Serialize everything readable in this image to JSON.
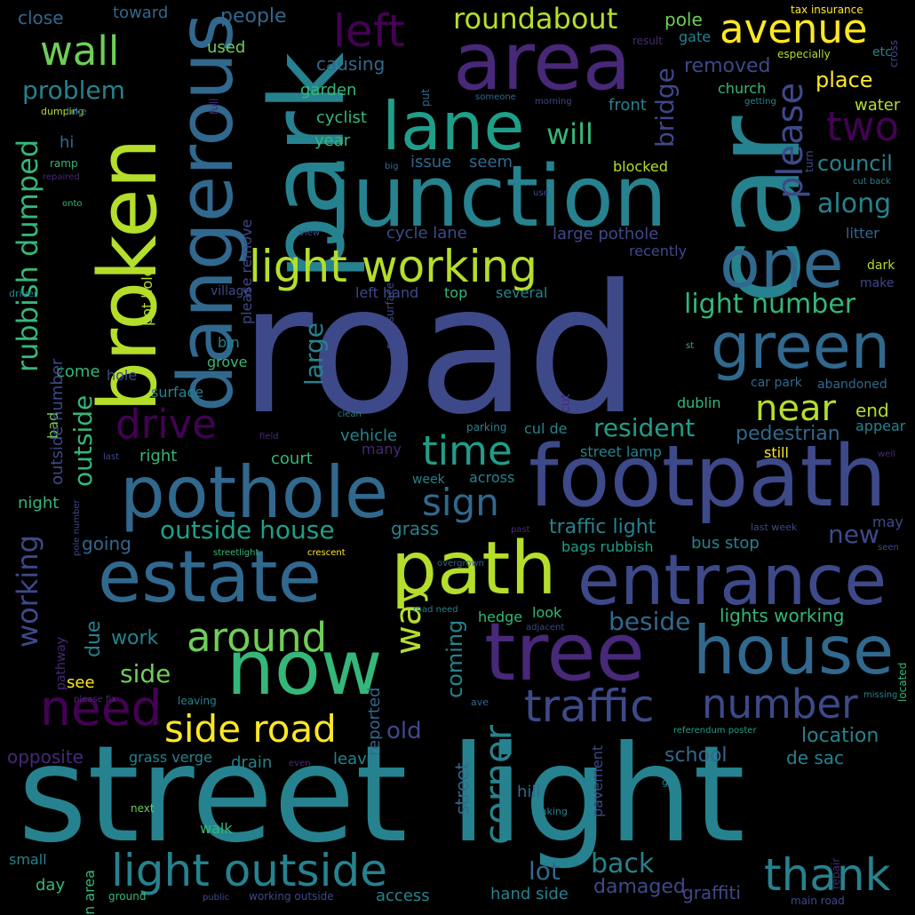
{
  "palette": [
    "#440154",
    "#482878",
    "#3e4989",
    "#31688e",
    "#26828e",
    "#1f9e89",
    "#35b779",
    "#6ece58",
    "#b5de2b",
    "#fde725"
  ],
  "words": [
    {
      "text": "road",
      "color": "#3e4989"
    },
    {
      "text": "street light",
      "color": "#26828e"
    },
    {
      "text": "junction",
      "color": "#26828e"
    },
    {
      "text": "footpath",
      "color": "#3e4989"
    },
    {
      "text": "car",
      "color": "#26828e"
    },
    {
      "text": "area",
      "color": "#482878"
    },
    {
      "text": "park",
      "color": "#26828e"
    },
    {
      "text": "broken",
      "color": "#b5de2b"
    },
    {
      "text": "dangerous",
      "color": "#31688e"
    },
    {
      "text": "pothole",
      "color": "#31688e"
    },
    {
      "text": "estate",
      "color": "#31688e"
    },
    {
      "text": "path",
      "color": "#b5de2b"
    },
    {
      "text": "entrance",
      "color": "#3e4989"
    },
    {
      "text": "tree",
      "color": "#482878"
    },
    {
      "text": "now",
      "color": "#35b779"
    },
    {
      "text": "house",
      "color": "#31688e"
    },
    {
      "text": "lane",
      "color": "#1f9e89"
    },
    {
      "text": "one",
      "color": "#31688e"
    },
    {
      "text": "green",
      "color": "#31688e"
    },
    {
      "text": "light working",
      "color": "#b5de2b"
    },
    {
      "text": "light outside",
      "color": "#26828e"
    },
    {
      "text": "thank",
      "color": "#26828e"
    },
    {
      "text": "side road",
      "color": "#fde725"
    },
    {
      "text": "traffic",
      "color": "#3e4989"
    },
    {
      "text": "need",
      "color": "#440154"
    },
    {
      "text": "avenue",
      "color": "#fde725"
    },
    {
      "text": "left",
      "color": "#440154"
    },
    {
      "text": "wall",
      "color": "#6ece58"
    },
    {
      "text": "two",
      "color": "#440154"
    },
    {
      "text": "please",
      "color": "#3e4989"
    },
    {
      "text": "drive",
      "color": "#440154"
    },
    {
      "text": "near",
      "color": "#b5de2b"
    },
    {
      "text": "time",
      "color": "#1f9e89"
    },
    {
      "text": "sign",
      "color": "#31688e"
    },
    {
      "text": "way",
      "color": "#b5de2b"
    },
    {
      "text": "around",
      "color": "#6ece58"
    },
    {
      "text": "corner",
      "color": "#26828e"
    },
    {
      "text": "number",
      "color": "#3e4989"
    },
    {
      "text": "roundabout",
      "color": "#b5de2b"
    },
    {
      "text": "rubbish dumped",
      "color": "#35b779"
    },
    {
      "text": "working",
      "color": "#3e4989"
    },
    {
      "text": "outside",
      "color": "#35b779"
    },
    {
      "text": "problem",
      "color": "#26828e"
    },
    {
      "text": "will",
      "color": "#35b779"
    },
    {
      "text": "bridge",
      "color": "#3e4989"
    },
    {
      "text": "along",
      "color": "#26828e"
    },
    {
      "text": "council",
      "color": "#26828e"
    },
    {
      "text": "place",
      "color": "#fde725"
    },
    {
      "text": "removed",
      "color": "#3e4989"
    },
    {
      "text": "water",
      "color": "#b5de2b"
    },
    {
      "text": "light number",
      "color": "#35b779"
    },
    {
      "text": "resident",
      "color": "#1f9e89"
    },
    {
      "text": "outside house",
      "color": "#1f9e89"
    },
    {
      "text": "large",
      "color": "#26828e"
    },
    {
      "text": "traffic light",
      "color": "#26828e"
    },
    {
      "text": "new",
      "color": "#3e4989"
    },
    {
      "text": "pedestrian",
      "color": "#31688e"
    },
    {
      "text": "end",
      "color": "#b5de2b"
    },
    {
      "text": "beside",
      "color": "#31688e"
    },
    {
      "text": "lights working",
      "color": "#35b779"
    },
    {
      "text": "coming",
      "color": "#26828e"
    },
    {
      "text": "old",
      "color": "#3e4989"
    },
    {
      "text": "side",
      "color": "#6ece58"
    },
    {
      "text": "back",
      "color": "#26828e"
    },
    {
      "text": "lot",
      "color": "#31688e"
    },
    {
      "text": "damaged",
      "color": "#3e4989"
    },
    {
      "text": "location",
      "color": "#26828e"
    },
    {
      "text": "school",
      "color": "#31688e"
    },
    {
      "text": "de sac",
      "color": "#26828e"
    },
    {
      "text": "graffiti",
      "color": "#3e4989"
    },
    {
      "text": "hand side",
      "color": "#26828e"
    },
    {
      "text": "work",
      "color": "#26828e"
    },
    {
      "text": "due",
      "color": "#26828e"
    },
    {
      "text": "see",
      "color": "#fde725"
    },
    {
      "text": "opposite",
      "color": "#482878"
    },
    {
      "text": "drain",
      "color": "#26828e"
    },
    {
      "text": "leave",
      "color": "#26828e"
    },
    {
      "text": "street",
      "color": "#31688e"
    },
    {
      "text": "pavement",
      "color": "#3e4989"
    },
    {
      "text": "close",
      "color": "#31688e"
    },
    {
      "text": "toward",
      "color": "#31688e"
    },
    {
      "text": "people",
      "color": "#31688e"
    },
    {
      "text": "used",
      "color": "#6ece58"
    },
    {
      "text": "pole",
      "color": "#6ece58"
    },
    {
      "text": "gate",
      "color": "#26828e"
    },
    {
      "text": "etc",
      "color": "#26828e"
    },
    {
      "text": "causing",
      "color": "#31688e"
    },
    {
      "text": "garden",
      "color": "#35b779"
    },
    {
      "text": "cyclist",
      "color": "#35b779"
    },
    {
      "text": "year",
      "color": "#35b779"
    },
    {
      "text": "church",
      "color": "#35b779"
    },
    {
      "text": "front",
      "color": "#26828e"
    },
    {
      "text": "issue",
      "color": "#31688e"
    },
    {
      "text": "seem",
      "color": "#31688e"
    },
    {
      "text": "blocked",
      "color": "#b5de2b"
    },
    {
      "text": "hi",
      "color": "#31688e"
    },
    {
      "text": "cycle lane",
      "color": "#3e4989"
    },
    {
      "text": "large pothole",
      "color": "#3e4989"
    },
    {
      "text": "litter",
      "color": "#31688e"
    },
    {
      "text": "recently",
      "color": "#3e4989"
    },
    {
      "text": "left hand",
      "color": "#3e4989"
    },
    {
      "text": "top",
      "color": "#35b779"
    },
    {
      "text": "several",
      "color": "#26828e"
    },
    {
      "text": "village",
      "color": "#3e4989"
    },
    {
      "text": "dark",
      "color": "#b5de2b"
    },
    {
      "text": "make",
      "color": "#3e4989"
    },
    {
      "text": "bin",
      "color": "#26828e"
    },
    {
      "text": "grove",
      "color": "#35b779"
    },
    {
      "text": "rd",
      "color": "#3e4989"
    },
    {
      "text": "hole",
      "color": "#3e4989"
    },
    {
      "text": "surface",
      "color": "#26828e"
    },
    {
      "text": "come",
      "color": "#35b779"
    },
    {
      "text": "bad",
      "color": "#6ece58"
    },
    {
      "text": "night",
      "color": "#35b779"
    },
    {
      "text": "right",
      "color": "#35b779"
    },
    {
      "text": "court",
      "color": "#35b779"
    },
    {
      "text": "vehicle",
      "color": "#26828e"
    },
    {
      "text": "cul de",
      "color": "#26828e"
    },
    {
      "text": "dublin",
      "color": "#35b779"
    },
    {
      "text": "appear",
      "color": "#26828e"
    },
    {
      "text": "still",
      "color": "#fde725"
    },
    {
      "text": "street lamp",
      "color": "#26828e"
    },
    {
      "text": "abandoned",
      "color": "#31688e"
    },
    {
      "text": "car park",
      "color": "#31688e"
    },
    {
      "text": "many",
      "color": "#482878"
    },
    {
      "text": "week",
      "color": "#26828e"
    },
    {
      "text": "across",
      "color": "#26828e"
    },
    {
      "text": "grass",
      "color": "#26828e"
    },
    {
      "text": "going",
      "color": "#31688e"
    },
    {
      "text": "bus stop",
      "color": "#26828e"
    },
    {
      "text": "bags rubbish",
      "color": "#1f9e89"
    },
    {
      "text": "may",
      "color": "#3e4989"
    },
    {
      "text": "look",
      "color": "#35b779"
    },
    {
      "text": "hedge",
      "color": "#35b779"
    },
    {
      "text": "reported",
      "color": "#31688e"
    },
    {
      "text": "grass verge",
      "color": "#26828e"
    },
    {
      "text": "hill",
      "color": "#31688e"
    },
    {
      "text": "walk",
      "color": "#35b779"
    },
    {
      "text": "small",
      "color": "#26828e"
    },
    {
      "text": "day",
      "color": "#35b779"
    },
    {
      "text": "green area",
      "color": "#35b779"
    },
    {
      "text": "access",
      "color": "#26828e"
    },
    {
      "text": "ground",
      "color": "#35b779"
    },
    {
      "text": "working outside",
      "color": "#3e4989"
    },
    {
      "text": "main road",
      "color": "#3e4989"
    },
    {
      "text": "tax insurance",
      "color": "#fde725"
    },
    {
      "text": "especially",
      "color": "#b5de2b"
    },
    {
      "text": "result",
      "color": "#482878"
    },
    {
      "text": "cross",
      "color": "#3e4989"
    },
    {
      "text": "someone",
      "color": "#31688e"
    },
    {
      "text": "morning",
      "color": "#3e4989"
    },
    {
      "text": "getting",
      "color": "#26828e"
    },
    {
      "text": "cut back",
      "color": "#26828e"
    },
    {
      "text": "use",
      "color": "#3e4989"
    },
    {
      "text": "big",
      "color": "#31688e"
    },
    {
      "text": "repaired",
      "color": "#482878"
    },
    {
      "text": "onto",
      "color": "#35b779"
    },
    {
      "text": "driver",
      "color": "#26828e"
    },
    {
      "text": "ramp",
      "color": "#35b779"
    },
    {
      "text": "dumping",
      "color": "#b5de2b"
    },
    {
      "text": "bike",
      "color": "#31688e"
    },
    {
      "text": "view",
      "color": "#3e4989"
    },
    {
      "text": "clean",
      "color": "#26828e"
    },
    {
      "text": "field",
      "color": "#482878"
    },
    {
      "text": "parking",
      "color": "#26828e"
    },
    {
      "text": "last",
      "color": "#3e4989"
    },
    {
      "text": "past",
      "color": "#482878"
    },
    {
      "text": "streetlight",
      "color": "#35b779"
    },
    {
      "text": "crescent",
      "color": "#fde725"
    },
    {
      "text": "overgrown",
      "color": "#31688e"
    },
    {
      "text": "last week",
      "color": "#3e4989"
    },
    {
      "text": "seen",
      "color": "#3e4989"
    },
    {
      "text": "well",
      "color": "#482878"
    },
    {
      "text": "st",
      "color": "#35b779"
    },
    {
      "text": "road need",
      "color": "#26828e"
    },
    {
      "text": "adjacent",
      "color": "#3e4989"
    },
    {
      "text": "located",
      "color": "#35b779"
    },
    {
      "text": "please fix",
      "color": "#482878"
    },
    {
      "text": "leaving",
      "color": "#26828e"
    },
    {
      "text": "ave",
      "color": "#31688e"
    },
    {
      "text": "missing",
      "color": "#26828e"
    },
    {
      "text": "referendum poster",
      "color": "#1f9e89"
    },
    {
      "text": "go",
      "color": "#26828e"
    },
    {
      "text": "making",
      "color": "#26828e"
    },
    {
      "text": "even",
      "color": "#482878"
    },
    {
      "text": "next",
      "color": "#6ece58"
    },
    {
      "text": "public",
      "color": "#3e4989"
    },
    {
      "text": "repair",
      "color": "#482878"
    },
    {
      "text": "turn",
      "color": "#3e4989"
    },
    {
      "text": "full",
      "color": "#482878"
    },
    {
      "text": "put",
      "color": "#31688e"
    },
    {
      "text": "please remove",
      "color": "#3e4989"
    },
    {
      "text": "pot hole",
      "color": "#b5de2b"
    },
    {
      "text": "outside number",
      "color": "#3e4989"
    },
    {
      "text": "road surface",
      "color": "#3e4989"
    },
    {
      "text": "cut",
      "color": "#482878"
    },
    {
      "text": "pole number",
      "color": "#3e4989"
    },
    {
      "text": "pathway",
      "color": "#482878"
    },
    {
      "text": "part",
      "color": "#482878"
    }
  ]
}
